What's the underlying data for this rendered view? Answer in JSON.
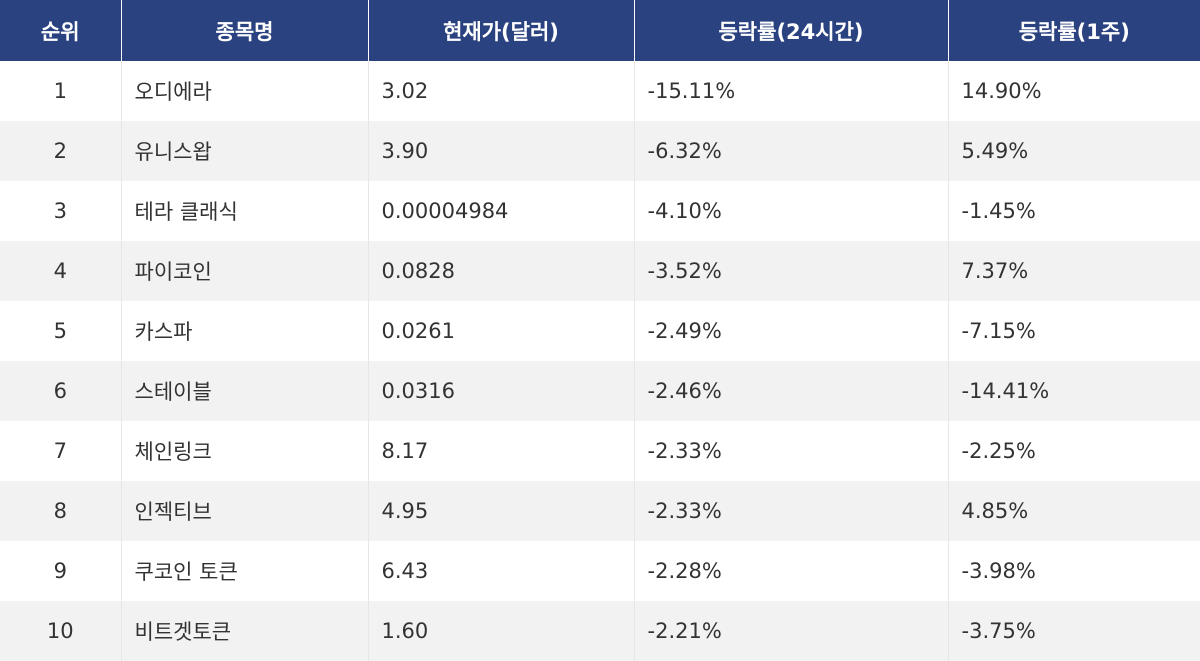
{
  "colors": {
    "header_bg": "#2a4280",
    "header_text": "#ffffff",
    "row_alt_bg": "#f2f2f2",
    "row_bg": "#ffffff",
    "text": "#333333"
  },
  "table": {
    "headers": [
      "순위",
      "종목명",
      "현재가(달러)",
      "등락률(24시간)",
      "등락률(1주)"
    ],
    "rows": [
      {
        "rank": "1",
        "name": "오디에라",
        "price": "3.02",
        "change_24h": "-15.11%",
        "change_1w": "14.90%"
      },
      {
        "rank": "2",
        "name": "유니스왑",
        "price": "3.90",
        "change_24h": "-6.32%",
        "change_1w": "5.49%"
      },
      {
        "rank": "3",
        "name": "테라 클래식",
        "price": "0.00004984",
        "change_24h": "-4.10%",
        "change_1w": "-1.45%"
      },
      {
        "rank": "4",
        "name": "파이코인",
        "price": "0.0828",
        "change_24h": "-3.52%",
        "change_1w": "7.37%"
      },
      {
        "rank": "5",
        "name": "카스파",
        "price": "0.0261",
        "change_24h": "-2.49%",
        "change_1w": "-7.15%"
      },
      {
        "rank": "6",
        "name": "스테이블",
        "price": "0.0316",
        "change_24h": "-2.46%",
        "change_1w": "-14.41%"
      },
      {
        "rank": "7",
        "name": "체인링크",
        "price": "8.17",
        "change_24h": "-2.33%",
        "change_1w": "-2.25%"
      },
      {
        "rank": "8",
        "name": "인젝티브",
        "price": "4.95",
        "change_24h": "-2.33%",
        "change_1w": "4.85%"
      },
      {
        "rank": "9",
        "name": "쿠코인 토큰",
        "price": "6.43",
        "change_24h": "-2.28%",
        "change_1w": "-3.98%"
      },
      {
        "rank": "10",
        "name": "비트겟토큰",
        "price": "1.60",
        "change_24h": "-2.21%",
        "change_1w": "-3.75%"
      }
    ]
  }
}
